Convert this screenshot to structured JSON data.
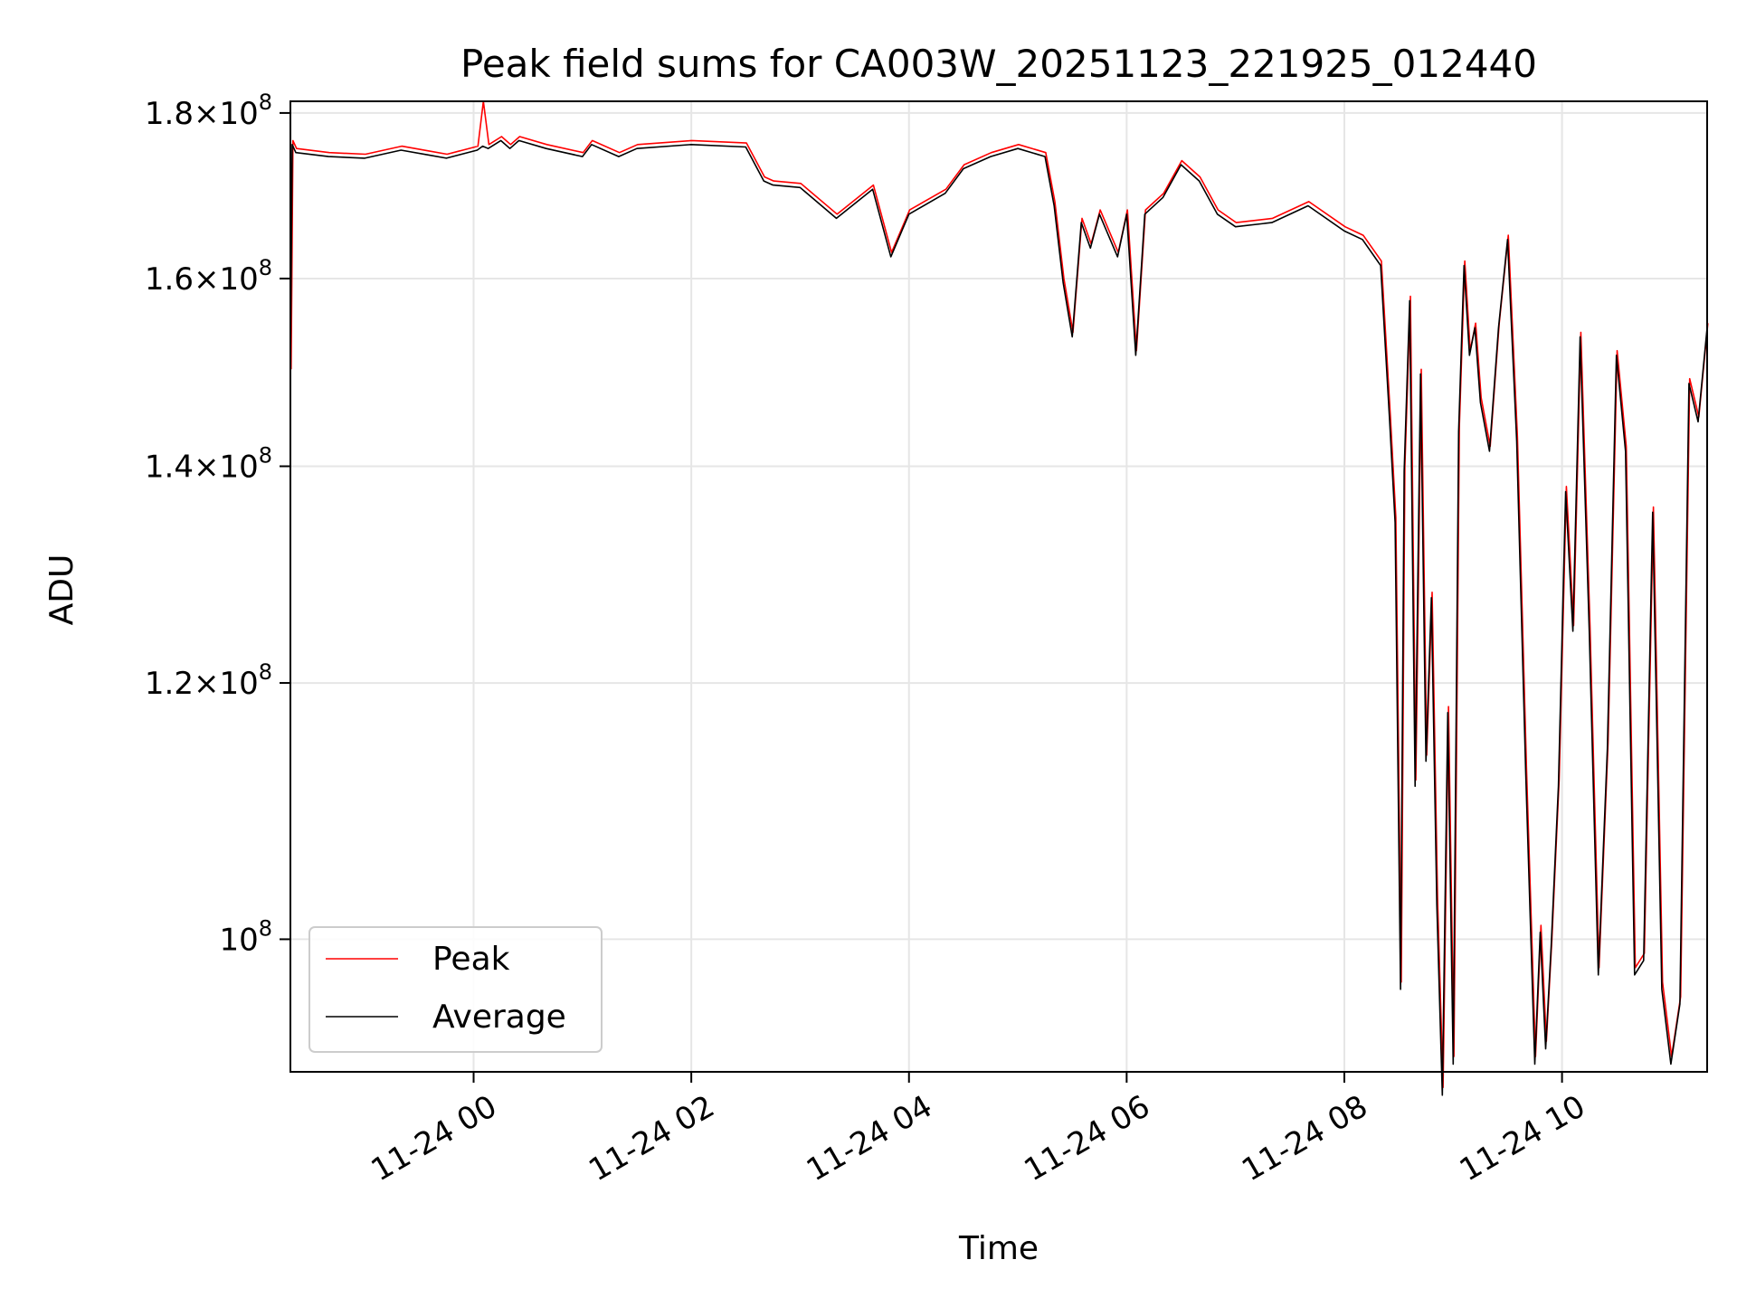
{
  "chart_data": {
    "type": "line",
    "title": "Peak field sums for CA003W_20251123_221925_012440",
    "xlabel": "Time",
    "ylabel": "ADU",
    "yscale": "log",
    "grid": true,
    "legend_position": "lower-left",
    "x_ticks": [
      "11-24 00",
      "11-24 02",
      "11-24 04",
      "11-24 06",
      "11-24 08",
      "11-24 10"
    ],
    "y_ticks": [
      {
        "value": 100000000,
        "base": "10",
        "exp": "8"
      },
      {
        "value": 120000000,
        "mantissa": "1.2",
        "base": "10",
        "exp": "8"
      },
      {
        "value": 140000000,
        "mantissa": "1.4",
        "base": "10",
        "exp": "8"
      },
      {
        "value": 160000000,
        "mantissa": "1.6",
        "base": "10",
        "exp": "8"
      },
      {
        "value": 180000000,
        "mantissa": "1.8",
        "base": "10",
        "exp": "8"
      }
    ],
    "xlim": [
      "2025-11-23 22:19",
      "2025-11-24 11:20"
    ],
    "ylim": [
      91000000,
      181500000
    ],
    "series": [
      {
        "name": "Peak",
        "color": "#ff0000",
        "x": [
          "2025-11-23 22:19",
          "2025-11-23 22:20",
          "2025-11-23 22:22",
          "2025-11-23 22:40",
          "2025-11-23 23:00",
          "2025-11-23 23:20",
          "2025-11-23 23:35",
          "2025-11-23 23:45",
          "2025-11-24 00:02",
          "2025-11-24 00:05",
          "2025-11-24 00:08",
          "2025-11-24 00:15",
          "2025-11-24 00:20",
          "2025-11-24 00:25",
          "2025-11-24 00:40",
          "2025-11-24 01:00",
          "2025-11-24 01:05",
          "2025-11-24 01:20",
          "2025-11-24 01:30",
          "2025-11-24 02:00",
          "2025-11-24 02:30",
          "2025-11-24 02:40",
          "2025-11-24 02:45",
          "2025-11-24 03:00",
          "2025-11-24 03:20",
          "2025-11-24 03:40",
          "2025-11-24 03:50",
          "2025-11-24 04:00",
          "2025-11-24 04:20",
          "2025-11-24 04:30",
          "2025-11-24 04:45",
          "2025-11-24 05:00",
          "2025-11-24 05:15",
          "2025-11-24 05:20",
          "2025-11-24 05:25",
          "2025-11-24 05:30",
          "2025-11-24 05:35",
          "2025-11-24 05:40",
          "2025-11-24 05:45",
          "2025-11-24 05:55",
          "2025-11-24 06:00",
          "2025-11-24 06:05",
          "2025-11-24 06:10",
          "2025-11-24 06:20",
          "2025-11-24 06:30",
          "2025-11-24 06:40",
          "2025-11-24 06:50",
          "2025-11-24 07:00",
          "2025-11-24 07:20",
          "2025-11-24 07:40",
          "2025-11-24 08:00",
          "2025-11-24 08:10",
          "2025-11-24 08:20",
          "2025-11-24 08:25",
          "2025-11-24 08:28",
          "2025-11-24 08:31",
          "2025-11-24 08:33",
          "2025-11-24 08:36",
          "2025-11-24 08:39",
          "2025-11-24 08:42",
          "2025-11-24 08:45",
          "2025-11-24 08:48",
          "2025-11-24 08:51",
          "2025-11-24 08:54",
          "2025-11-24 08:57",
          "2025-11-24 09:00",
          "2025-11-24 09:03",
          "2025-11-24 09:06",
          "2025-11-24 09:09",
          "2025-11-24 09:12",
          "2025-11-24 09:15",
          "2025-11-24 09:20",
          "2025-11-24 09:25",
          "2025-11-24 09:30",
          "2025-11-24 09:35",
          "2025-11-24 09:40",
          "2025-11-24 09:45",
          "2025-11-24 09:48",
          "2025-11-24 09:51",
          "2025-11-24 09:54",
          "2025-11-24 09:58",
          "2025-11-24 10:02",
          "2025-11-24 10:06",
          "2025-11-24 10:10",
          "2025-11-24 10:15",
          "2025-11-24 10:20",
          "2025-11-24 10:25",
          "2025-11-24 10:30",
          "2025-11-24 10:35",
          "2025-11-24 10:40",
          "2025-11-24 10:45",
          "2025-11-24 10:50",
          "2025-11-24 10:55",
          "2025-11-24 11:00",
          "2025-11-24 11:05",
          "2025-11-24 11:10",
          "2025-11-24 11:15",
          "2025-11-24 11:20"
        ],
        "values": [
          150000000,
          176500000,
          175500000,
          175000000,
          174800000,
          175800000,
          175200000,
          174800000,
          175800000,
          181500000,
          176000000,
          177000000,
          176000000,
          177000000,
          176000000,
          175000000,
          176500000,
          175000000,
          176000000,
          176500000,
          176200000,
          172000000,
          171500000,
          171200000,
          167500000,
          171000000,
          163000000,
          168000000,
          170500000,
          173500000,
          175000000,
          176000000,
          175000000,
          169000000,
          160000000,
          154000000,
          167000000,
          164000000,
          168000000,
          163000000,
          168000000,
          152000000,
          168000000,
          170000000,
          174000000,
          172000000,
          168000000,
          166500000,
          167000000,
          169000000,
          166000000,
          165000000,
          162000000,
          145000000,
          135000000,
          97000000,
          140000000,
          158000000,
          112000000,
          150000000,
          114000000,
          128000000,
          103000000,
          90000000,
          118000000,
          92000000,
          144000000,
          162000000,
          152000000,
          155000000,
          147000000,
          142000000,
          155000000,
          165000000,
          143000000,
          113000000,
          92000000,
          101000000,
          93000000,
          100000000,
          112000000,
          138000000,
          125000000,
          154000000,
          125000000,
          98000000,
          115000000,
          152000000,
          142000000,
          98000000,
          99000000,
          136000000,
          97000000,
          92000000,
          96000000,
          149000000,
          145000000,
          155000000
        ]
      },
      {
        "name": "Average",
        "color": "#000000",
        "x": [
          "2025-11-23 22:19",
          "2025-11-23 22:20",
          "2025-11-23 22:22",
          "2025-11-23 22:40",
          "2025-11-23 23:00",
          "2025-11-23 23:20",
          "2025-11-23 23:35",
          "2025-11-23 23:45",
          "2025-11-24 00:02",
          "2025-11-24 00:05",
          "2025-11-24 00:08",
          "2025-11-24 00:15",
          "2025-11-24 00:20",
          "2025-11-24 00:25",
          "2025-11-24 00:40",
          "2025-11-24 01:00",
          "2025-11-24 01:05",
          "2025-11-24 01:20",
          "2025-11-24 01:30",
          "2025-11-24 02:00",
          "2025-11-24 02:30",
          "2025-11-24 02:40",
          "2025-11-24 02:45",
          "2025-11-24 03:00",
          "2025-11-24 03:20",
          "2025-11-24 03:40",
          "2025-11-24 03:50",
          "2025-11-24 04:00",
          "2025-11-24 04:20",
          "2025-11-24 04:30",
          "2025-11-24 04:45",
          "2025-11-24 05:00",
          "2025-11-24 05:15",
          "2025-11-24 05:20",
          "2025-11-24 05:25",
          "2025-11-24 05:30",
          "2025-11-24 05:35",
          "2025-11-24 05:40",
          "2025-11-24 05:45",
          "2025-11-24 05:55",
          "2025-11-24 06:00",
          "2025-11-24 06:05",
          "2025-11-24 06:10",
          "2025-11-24 06:20",
          "2025-11-24 06:30",
          "2025-11-24 06:40",
          "2025-11-24 06:50",
          "2025-11-24 07:00",
          "2025-11-24 07:20",
          "2025-11-24 07:40",
          "2025-11-24 08:00",
          "2025-11-24 08:10",
          "2025-11-24 08:20",
          "2025-11-24 08:25",
          "2025-11-24 08:28",
          "2025-11-24 08:31",
          "2025-11-24 08:33",
          "2025-11-24 08:36",
          "2025-11-24 08:39",
          "2025-11-24 08:42",
          "2025-11-24 08:45",
          "2025-11-24 08:48",
          "2025-11-24 08:51",
          "2025-11-24 08:54",
          "2025-11-24 08:57",
          "2025-11-24 09:00",
          "2025-11-24 09:03",
          "2025-11-24 09:06",
          "2025-11-24 09:09",
          "2025-11-24 09:12",
          "2025-11-24 09:15",
          "2025-11-24 09:20",
          "2025-11-24 09:25",
          "2025-11-24 09:30",
          "2025-11-24 09:35",
          "2025-11-24 09:40",
          "2025-11-24 09:45",
          "2025-11-24 09:48",
          "2025-11-24 09:51",
          "2025-11-24 09:54",
          "2025-11-24 09:58",
          "2025-11-24 10:02",
          "2025-11-24 10:06",
          "2025-11-24 10:10",
          "2025-11-24 10:15",
          "2025-11-24 10:20",
          "2025-11-24 10:25",
          "2025-11-24 10:30",
          "2025-11-24 10:35",
          "2025-11-24 10:40",
          "2025-11-24 10:45",
          "2025-11-24 10:50",
          "2025-11-24 10:55",
          "2025-11-24 11:00",
          "2025-11-24 11:05",
          "2025-11-24 11:10",
          "2025-11-24 11:15",
          "2025-11-24 11:20"
        ],
        "values": [
          150000000,
          176000000,
          175000000,
          174500000,
          174300000,
          175300000,
          174700000,
          174300000,
          175300000,
          175800000,
          175500000,
          176500000,
          175500000,
          176500000,
          175500000,
          174500000,
          176000000,
          174500000,
          175500000,
          176000000,
          175700000,
          171500000,
          171000000,
          170700000,
          167000000,
          170500000,
          162500000,
          167500000,
          170000000,
          173000000,
          174500000,
          175500000,
          174500000,
          168500000,
          159500000,
          153500000,
          166500000,
          163500000,
          167500000,
          162500000,
          167500000,
          151500000,
          167500000,
          169500000,
          173500000,
          171500000,
          167500000,
          166000000,
          166500000,
          168500000,
          165500000,
          164500000,
          161500000,
          144500000,
          134500000,
          96500000,
          139500000,
          157500000,
          111500000,
          149500000,
          113500000,
          127500000,
          102500000,
          89500000,
          117500000,
          91500000,
          143500000,
          161500000,
          151500000,
          154500000,
          146500000,
          141500000,
          154500000,
          164500000,
          142500000,
          112500000,
          91500000,
          100500000,
          92500000,
          99500000,
          111500000,
          137500000,
          124500000,
          153500000,
          124500000,
          97500000,
          114500000,
          151500000,
          141500000,
          97500000,
          98500000,
          135500000,
          96500000,
          91500000,
          95500000,
          148500000,
          144500000,
          154500000
        ]
      }
    ]
  }
}
